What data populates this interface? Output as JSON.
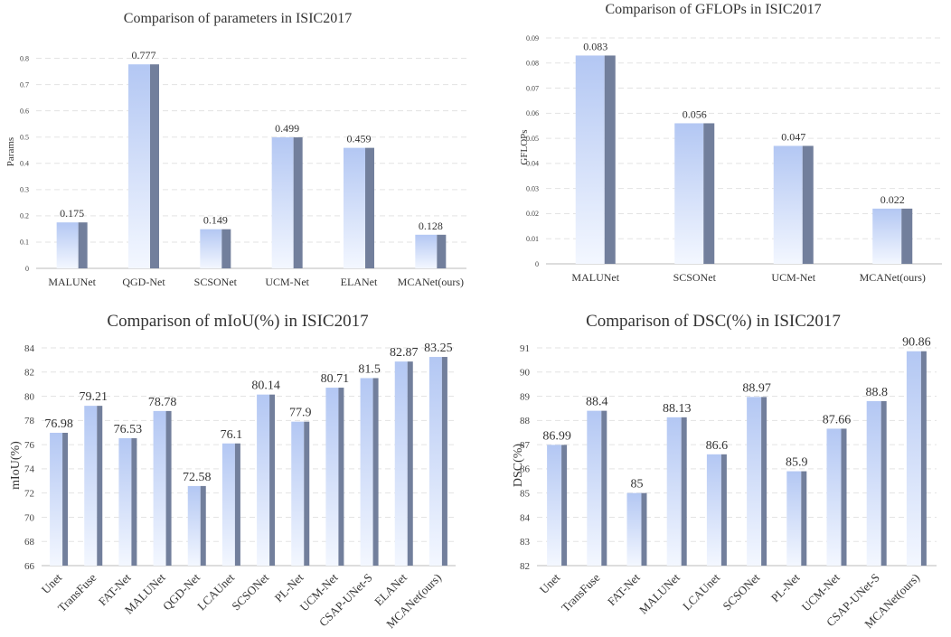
{
  "colors": {
    "bar_top": "#b3c7f3",
    "bar_bottom": "#f3f7ff",
    "bar_side": "#727f9c",
    "grid": "#e3e3e3",
    "axis": "#bbbbbb",
    "text": "#333333"
  },
  "chart_data": [
    {
      "type": "bar",
      "title": "Comparison of parameters in ISIC2017",
      "xlabel": "",
      "ylabel": "Params",
      "ylim": [
        0,
        0.85
      ],
      "yticks": [
        "0",
        "0.1",
        "0.2",
        "0.3",
        "0.4",
        "0.5",
        "0.6",
        "0.7",
        "0.8"
      ],
      "tick_values": [
        0,
        0.1,
        0.2,
        0.3,
        0.4,
        0.5,
        0.6,
        0.7,
        0.8
      ],
      "categories": [
        "MALUNet",
        "QGD-Net",
        "SCSONet",
        "UCM-Net",
        "ELANet",
        "MCANet(ours)"
      ],
      "values": [
        0.175,
        0.777,
        0.149,
        0.499,
        0.459,
        0.128
      ],
      "value_labels": [
        "0.175",
        "0.777",
        "0.149",
        "0.499",
        "0.459",
        "0.128"
      ]
    },
    {
      "type": "bar",
      "title": "Comparison of GFLOPs in ISIC2017",
      "xlabel": "",
      "ylabel": "GFLOPs",
      "ylim": [
        0,
        0.09
      ],
      "yticks": [
        "0",
        "0.01",
        "0.02",
        "0.03",
        "0.04",
        "0.05",
        "0.06",
        "0.07",
        "0.08",
        "0.09"
      ],
      "tick_values": [
        0,
        0.01,
        0.02,
        0.03,
        0.04,
        0.05,
        0.06,
        0.07,
        0.08,
        0.09
      ],
      "categories": [
        "MALUNet",
        "SCSONet",
        "UCM-Net",
        "MCANet(ours)"
      ],
      "values": [
        0.083,
        0.056,
        0.047,
        0.022
      ],
      "value_labels": [
        "0.083",
        "0.056",
        "0.047",
        "0.022"
      ]
    },
    {
      "type": "bar",
      "title": "Comparison of mIoU(%)  in ISIC2017",
      "xlabel": "",
      "ylabel": "mIoU(%)",
      "ylim": [
        66,
        84
      ],
      "yticks": [
        "66",
        "68",
        "70",
        "72",
        "74",
        "76",
        "78",
        "80",
        "82",
        "84"
      ],
      "tick_values": [
        66,
        68,
        70,
        72,
        74,
        76,
        78,
        80,
        82,
        84
      ],
      "categories": [
        "Unet",
        "TransFuse",
        "FAT-Net",
        "MALUNet",
        "QGD-Net",
        "LCAUnet",
        "SCSONet",
        "PL-Net",
        "UCM-Net",
        "CSAP-UNet-S",
        "ELANet",
        "MCANet(ours)"
      ],
      "values": [
        76.98,
        79.21,
        76.53,
        78.78,
        72.58,
        76.1,
        80.14,
        77.9,
        80.71,
        81.5,
        82.87,
        83.25
      ],
      "value_labels": [
        "76.98",
        "79.21",
        "76.53",
        "78.78",
        "72.58",
        "76.1",
        "80.14",
        "77.9",
        "80.71",
        "81.5",
        "82.87",
        "83.25"
      ]
    },
    {
      "type": "bar",
      "title": "Comparison of DSC(%) in ISIC2017",
      "xlabel": "",
      "ylabel": "DSC(%)",
      "ylim": [
        82,
        91
      ],
      "yticks": [
        "82",
        "83",
        "84",
        "85",
        "86",
        "87",
        "88",
        "89",
        "90",
        "91"
      ],
      "tick_values": [
        82,
        83,
        84,
        85,
        86,
        87,
        88,
        89,
        90,
        91
      ],
      "categories": [
        "Unet",
        "TransFuse",
        "FAT-Net",
        "MALUNet",
        "LCAUnet",
        "SCSONet",
        "PL-Net",
        "UCM-Net",
        "CSAP-UNet-S",
        "MCANet(ours)"
      ],
      "values": [
        86.99,
        88.4,
        85,
        88.13,
        86.6,
        88.97,
        85.9,
        87.66,
        88.8,
        90.86
      ],
      "value_labels": [
        "86.99",
        "88.4",
        "85",
        "88.13",
        "86.6",
        "88.97",
        "85.9",
        "87.66",
        "88.8",
        "90.86"
      ]
    }
  ]
}
